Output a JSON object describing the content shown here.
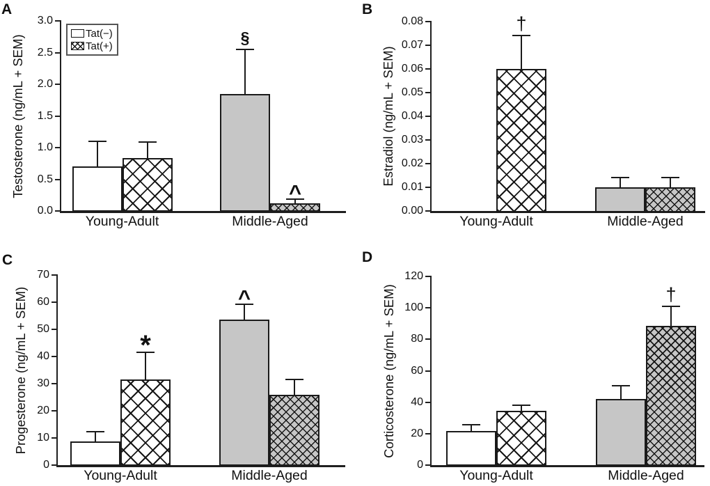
{
  "figure": {
    "background": "#ffffff",
    "group_labels": [
      "Young-Adult",
      "Middle-Aged"
    ],
    "series_labels": [
      "Tat(−)",
      "Tat(+)"
    ],
    "colors": {
      "young_adult_fill": "#ffffff",
      "middle_aged_fill": "#c6c6c6",
      "hatch": "#161616",
      "axis_and_text": "#1a1a1a"
    }
  },
  "chart_data": [
    {
      "panel": "A",
      "type": "bar",
      "ylabel": "Testosterone (ng/mL + SEM)",
      "ylim": [
        0,
        3.0
      ],
      "ytick_step": 0.5,
      "ytick_decimals": 1,
      "grid": false,
      "categories": [
        "Young-Adult",
        "Middle-Aged"
      ],
      "category_fills": [
        "#ffffff",
        "#c6c6c6"
      ],
      "series": [
        {
          "name": "Tat(−)",
          "hatched": false,
          "values": [
            0.7,
            1.85
          ],
          "sem": [
            0.4,
            0.7
          ]
        },
        {
          "name": "Tat(+)",
          "hatched": true,
          "values": [
            0.83,
            0.12
          ],
          "sem": [
            0.26,
            0.07
          ]
        }
      ],
      "annotations": [
        {
          "symbol": "§",
          "category_index": 1,
          "series_index": 0
        },
        {
          "symbol": "^",
          "category_index": 1,
          "series_index": 1
        }
      ],
      "legend": {
        "position": "upper-left",
        "entries": [
          {
            "label": "Tat(−)",
            "hatched": false
          },
          {
            "label": "Tat(+)",
            "hatched": true
          }
        ]
      }
    },
    {
      "panel": "B",
      "type": "bar",
      "ylabel": "Estradiol (ng/mL + SEM)",
      "ylim": [
        0,
        0.08
      ],
      "ytick_step": 0.01,
      "ytick_decimals": 2,
      "grid": false,
      "categories": [
        "Young-Adult",
        "Middle-Aged"
      ],
      "category_fills": [
        "#ffffff",
        "#c6c6c6"
      ],
      "series": [
        {
          "name": "Tat(−)",
          "hatched": false,
          "values": [
            0,
            0.01
          ],
          "sem": [
            0,
            0.004
          ]
        },
        {
          "name": "Tat(+)",
          "hatched": true,
          "values": [
            0.06,
            0.01
          ],
          "sem": [
            0.014,
            0.004
          ]
        }
      ],
      "annotations": [
        {
          "symbol": "†",
          "category_index": 0,
          "series_index": 1
        }
      ],
      "legend": null
    },
    {
      "panel": "C",
      "type": "bar",
      "ylabel": "Progesterone (ng/mL + SEM)",
      "ylim": [
        0,
        70
      ],
      "ytick_step": 10,
      "ytick_decimals": 0,
      "grid": false,
      "categories": [
        "Young-Adult",
        "Middle-Aged"
      ],
      "category_fills": [
        "#ffffff",
        "#c6c6c6"
      ],
      "series": [
        {
          "name": "Tat(−)",
          "hatched": false,
          "values": [
            8.8,
            53.5
          ],
          "sem": [
            3.6,
            5.8
          ]
        },
        {
          "name": "Tat(+)",
          "hatched": true,
          "values": [
            31.5,
            26.0
          ],
          "sem": [
            10.0,
            5.5
          ]
        }
      ],
      "annotations": [
        {
          "symbol": "*",
          "category_index": 0,
          "series_index": 1
        },
        {
          "symbol": "^",
          "category_index": 1,
          "series_index": 0
        }
      ],
      "legend": null
    },
    {
      "panel": "D",
      "type": "bar",
      "ylabel": "Corticosterone (ng/mL + SEM)",
      "ylim": [
        0,
        120
      ],
      "ytick_step": 20,
      "ytick_decimals": 0,
      "grid": false,
      "categories": [
        "Young-Adult",
        "Middle-Aged"
      ],
      "category_fills": [
        "#ffffff",
        "#c6c6c6"
      ],
      "series": [
        {
          "name": "Tat(−)",
          "hatched": false,
          "values": [
            21.5,
            42.0
          ],
          "sem": [
            4.0,
            8.5
          ]
        },
        {
          "name": "Tat(+)",
          "hatched": true,
          "values": [
            34.5,
            88.5
          ],
          "sem": [
            3.5,
            12.5
          ]
        }
      ],
      "annotations": [
        {
          "symbol": "†",
          "category_index": 1,
          "series_index": 1
        }
      ],
      "legend": null
    }
  ]
}
